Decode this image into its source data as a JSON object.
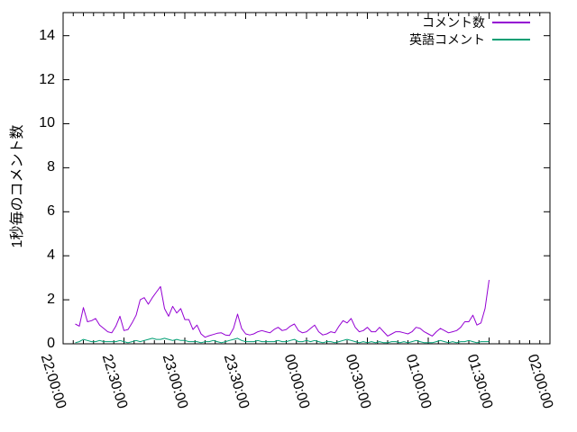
{
  "chart_data": {
    "type": "line",
    "title": "",
    "xlabel": "",
    "ylabel": "1秒毎のコメント数",
    "grid": false,
    "legend_position": "top-right-inside",
    "x_axis": {
      "unit": "time (HH:MM:SS)",
      "tick_labels": [
        "22:00:00",
        "22:30:00",
        "23:00:00",
        "23:30:00",
        "00:00:00",
        "00:30:00",
        "01:00:00",
        "01:30:00",
        "02:00:00"
      ],
      "range_minutes": [
        0,
        240
      ],
      "major_step_minutes": 30,
      "minor_step_minutes": 5,
      "tick_label_rotation_deg": 73
    },
    "y_axis": {
      "ticks": [
        0,
        2,
        4,
        6,
        8,
        10,
        12,
        14
      ],
      "range": [
        0,
        15.05
      ]
    },
    "series": [
      {
        "name": "コメント数",
        "color": "#9400d3",
        "x_start_minute": 6,
        "x_step_minutes": 2,
        "values": [
          0.9,
          0.8,
          1.65,
          1.0,
          1.05,
          1.15,
          0.85,
          0.7,
          0.55,
          0.5,
          0.8,
          1.25,
          0.6,
          0.65,
          0.95,
          1.3,
          2.0,
          2.1,
          1.8,
          2.1,
          2.35,
          2.6,
          1.6,
          1.25,
          1.7,
          1.4,
          1.6,
          1.1,
          1.1,
          0.65,
          0.85,
          0.45,
          0.3,
          0.37,
          0.42,
          0.48,
          0.5,
          0.4,
          0.38,
          0.7,
          1.35,
          0.7,
          0.45,
          0.4,
          0.45,
          0.55,
          0.6,
          0.55,
          0.5,
          0.65,
          0.75,
          0.6,
          0.65,
          0.8,
          0.9,
          0.6,
          0.5,
          0.55,
          0.7,
          0.85,
          0.55,
          0.4,
          0.45,
          0.55,
          0.5,
          0.8,
          1.05,
          0.95,
          1.15,
          0.75,
          0.55,
          0.6,
          0.75,
          0.55,
          0.55,
          0.75,
          0.55,
          0.35,
          0.45,
          0.55,
          0.55,
          0.5,
          0.45,
          0.55,
          0.75,
          0.7,
          0.55,
          0.45,
          0.35,
          0.55,
          0.7,
          0.6,
          0.5,
          0.55,
          0.6,
          0.75,
          1.0,
          1.0,
          1.3,
          0.85,
          0.95,
          1.6,
          2.9
        ]
      },
      {
        "name": "英語コメント",
        "color": "#009e73",
        "x_start_minute": 6,
        "x_step_minutes": 2,
        "values": [
          0.05,
          0.1,
          0.2,
          0.15,
          0.1,
          0.1,
          0.15,
          0.1,
          0.1,
          0.1,
          0.1,
          0.15,
          0.1,
          0.05,
          0.1,
          0.15,
          0.1,
          0.15,
          0.2,
          0.25,
          0.2,
          0.2,
          0.25,
          0.2,
          0.15,
          0.2,
          0.15,
          0.15,
          0.1,
          0.1,
          0.1,
          0.05,
          0.1,
          0.1,
          0.15,
          0.1,
          0.05,
          0.1,
          0.15,
          0.2,
          0.25,
          0.15,
          0.1,
          0.1,
          0.1,
          0.15,
          0.1,
          0.1,
          0.1,
          0.1,
          0.15,
          0.1,
          0.1,
          0.15,
          0.2,
          0.1,
          0.1,
          0.15,
          0.1,
          0.15,
          0.1,
          0.05,
          0.1,
          0.1,
          0.05,
          0.1,
          0.15,
          0.2,
          0.15,
          0.1,
          0.05,
          0.1,
          0.05,
          0.1,
          0.05,
          0.1,
          0.05,
          0.05,
          0.1,
          0.1,
          0.05,
          0.1,
          0.05,
          0.1,
          0.15,
          0.1,
          0.05,
          0.05,
          0.05,
          0.1,
          0.15,
          0.1,
          0.05,
          0.1,
          0.05,
          0.1,
          0.1,
          0.15,
          0.1,
          0.05,
          0.1,
          0.1,
          0.1
        ]
      }
    ]
  },
  "colors": {
    "axis": "#000000",
    "background": "#ffffff",
    "text": "#000000"
  }
}
